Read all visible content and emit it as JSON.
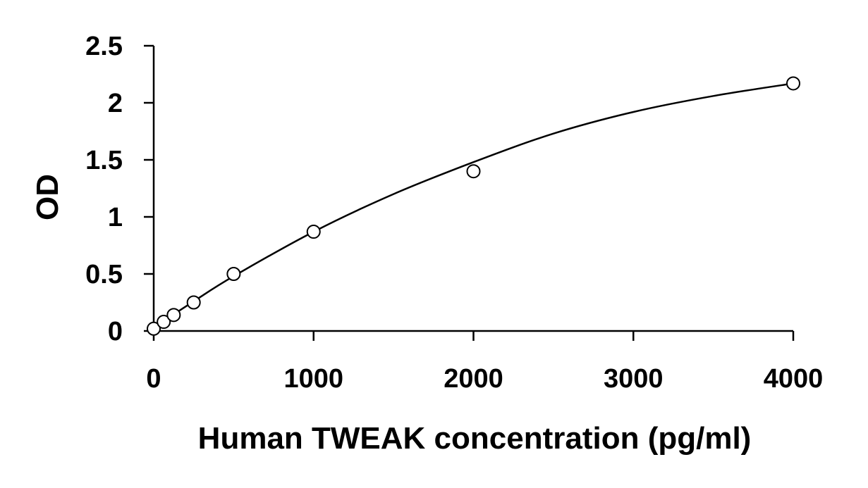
{
  "chart_data": {
    "type": "scatter",
    "title": "",
    "xlabel": "Human TWEAK concentration (pg/ml)",
    "ylabel": "OD",
    "xlim": [
      0,
      4000
    ],
    "ylim": [
      0,
      2.5
    ],
    "x_ticks": [
      0,
      1000,
      2000,
      3000,
      4000
    ],
    "x_tick_labels": [
      "0",
      "1000",
      "2000",
      "3000",
      "4000"
    ],
    "y_ticks": [
      0,
      0.5,
      1,
      1.5,
      2,
      2.5
    ],
    "y_tick_labels": [
      "0",
      "0.5",
      "1",
      "1.5",
      "2",
      "2.5"
    ],
    "grid": false,
    "legend": "none",
    "series": [
      {
        "marker": "open-circle",
        "x": [
          0,
          62.5,
          125,
          250,
          500,
          1000,
          2000,
          4000
        ],
        "y": [
          0.02,
          0.08,
          0.14,
          0.25,
          0.5,
          0.87,
          1.4,
          2.17
        ]
      }
    ],
    "fit_curve": {
      "type": "smooth",
      "x": [
        0,
        250,
        500,
        1000,
        1500,
        2000,
        2500,
        3000,
        3500,
        4000
      ],
      "y": [
        0.03,
        0.26,
        0.48,
        0.87,
        1.2,
        1.48,
        1.73,
        1.92,
        2.06,
        2.17
      ]
    },
    "colors": {
      "axis": "#000000",
      "marker_stroke": "#000000",
      "marker_fill": "#ffffff",
      "curve": "#000000"
    }
  }
}
